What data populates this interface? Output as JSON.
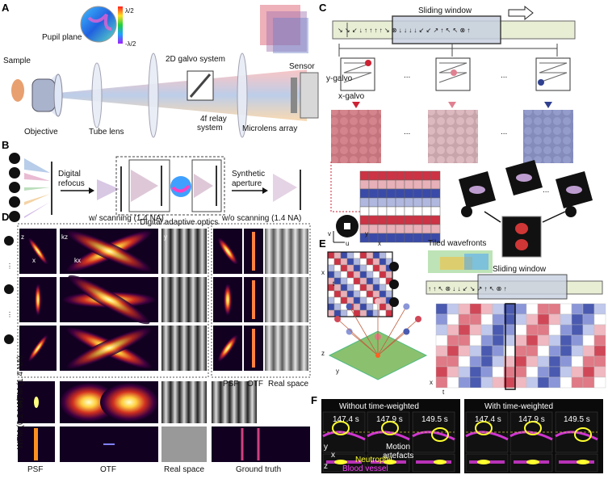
{
  "panels": {
    "a": {
      "letter": "A",
      "sample": "Sample",
      "pupil_plane": "Pupil plane",
      "objective": "Objective",
      "tube_lens": "Tube lens",
      "galvo": "2D galvo system",
      "relay_1": "4f relay",
      "relay_2": "system",
      "microlens": "Microlens array",
      "sensor": "Sensor",
      "cbar_top": "λ/2",
      "cbar_bottom": "-λ/2"
    },
    "b": {
      "letter": "B",
      "refocus_1": "Digital",
      "refocus_2": "refocus",
      "synthetic_1": "Synthetic",
      "synthetic_2": "aperture",
      "dao": "Digital adaptive optics"
    },
    "c": {
      "letter": "C",
      "sliding_window": "Sliding window",
      "y_galvo": "y-galvo",
      "x_galvo": "x-galvo",
      "ellipsis": "...",
      "axis_v": "v",
      "axis_u": "u",
      "axis_x": "x",
      "axis_y": "y"
    },
    "d": {
      "letter": "D",
      "with_scanning": "w/ scanning (1.4 NA)",
      "without_scanning": "w/o scanning (1.4 NA)",
      "wfm_14": "WFM (1.4 NA)",
      "wfm_02": "WFM (0.2 NA)",
      "col_psf": "PSF",
      "col_otf": "OTF",
      "col_real": "Real space",
      "col_gt": "Ground truth",
      "axis_z": "z",
      "axis_x": "x",
      "axis_kz": "kz",
      "axis_kx": "kx",
      "axis_y": "y",
      "vdots": "⋮"
    },
    "e": {
      "letter": "E",
      "tiled_wavefronts": "Tiled wavefronts",
      "sliding_window": "Sliding window",
      "axis_x": "x",
      "axis_t": "t",
      "axis_y": "y",
      "axis_z": "z"
    },
    "f": {
      "letter": "F",
      "without": "Without time-weighted",
      "with": "With time-weighted",
      "t1": "147.4 s",
      "t2": "147.9 s",
      "t3": "149.5 s",
      "motion_1": "Motion",
      "motion_2": "artefacts",
      "neutrophil": "Neutrophil",
      "blood_vessel": "Blood vessel",
      "axis_y": "y",
      "axis_x": "x",
      "axis_z": "z"
    }
  },
  "colors": {
    "heat_hot": "#ffff80",
    "heat_mid": "#e0402a",
    "heat_cold": "#120020",
    "red_cell": "#cc3344",
    "blue_cell": "#3a4aa8",
    "strip_fill": "#e8eed4",
    "green_plane": "#6fb24a",
    "neutrophil": "#ffff30",
    "vessel": "#ff40ff"
  }
}
